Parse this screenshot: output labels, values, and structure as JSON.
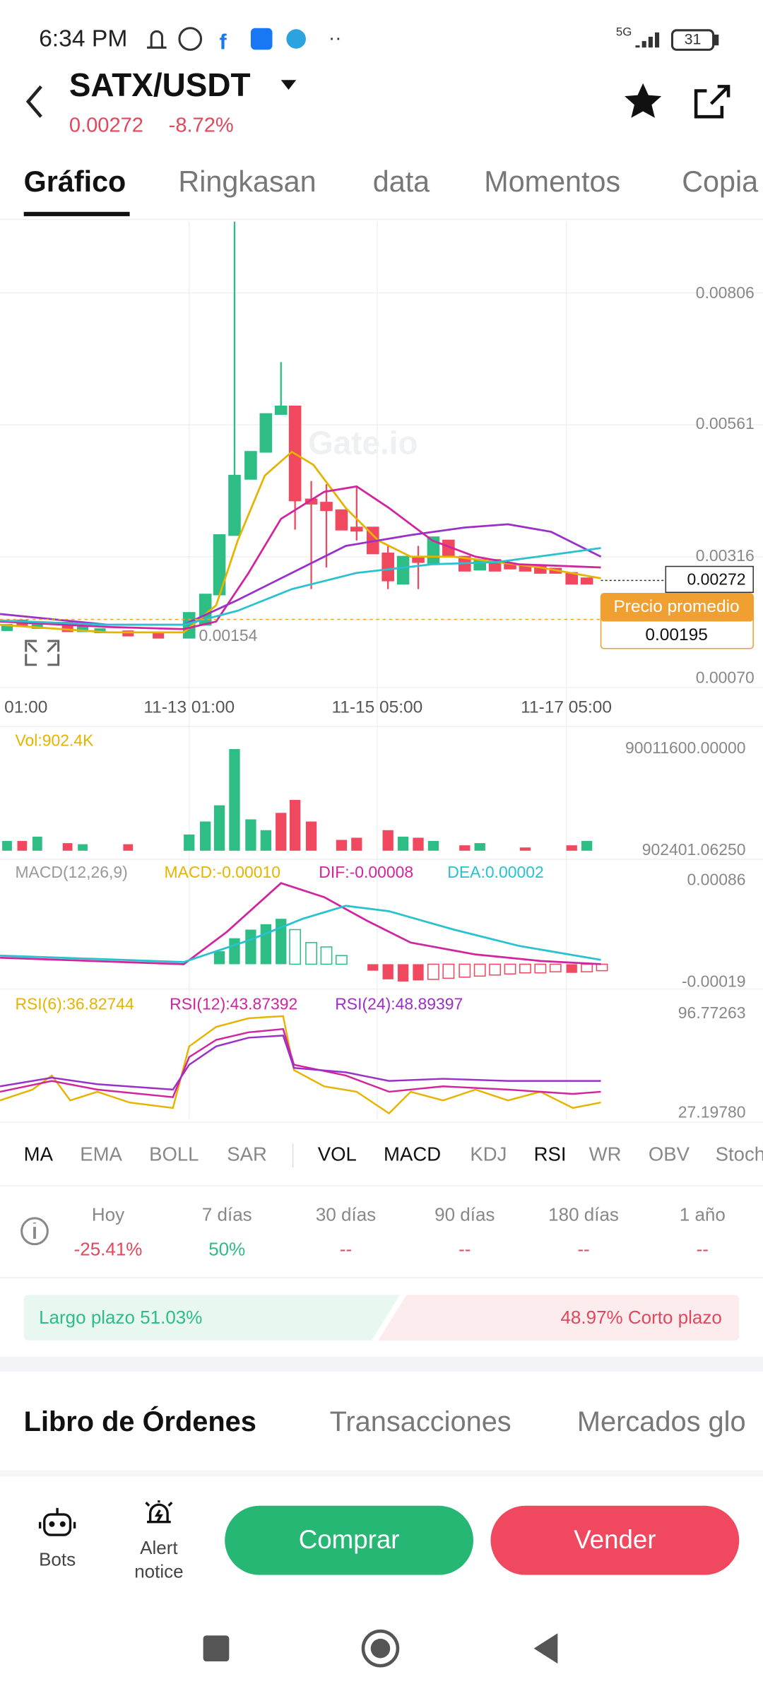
{
  "status_bar": {
    "time": "6:34 PM",
    "network": "5G",
    "battery": "31"
  },
  "header": {
    "pair": "SATX/USDT",
    "price": "0.00272",
    "change": "-8.72%"
  },
  "tabs": [
    "Gráfico",
    "Ringkasan",
    "data",
    "Momentos",
    "Copia"
  ],
  "price_chart": {
    "axis_labels": [
      "0.00806",
      "0.00561",
      "0.00316",
      "0.00070"
    ],
    "current_price": "0.00272",
    "average_label": "Precio promedio",
    "average_price": "0.00195",
    "low_label": "0.00154",
    "time_labels": [
      "01:00",
      "11-13 01:00",
      "11-15 05:00",
      "11-17 05:00"
    ],
    "watermark": "Gate.io"
  },
  "volume": {
    "label": "Vol:902.4K",
    "max": "90011600.00000",
    "min": "902401.06250"
  },
  "macd": {
    "name": "MACD(12,26,9)",
    "macd": "MACD:-0.00010",
    "dif": "DIF:-0.00008",
    "dea": "DEA:0.00002",
    "max": "0.00086",
    "min": "-0.00019"
  },
  "rsi": {
    "rsi6": "RSI(6):36.82744",
    "rsi12": "RSI(12):43.87392",
    "rsi24": "RSI(24):48.89397",
    "max": "96.77263",
    "min": "27.19780"
  },
  "indicators": [
    "MA",
    "EMA",
    "BOLL",
    "SAR",
    "VOL",
    "MACD",
    "KDJ",
    "RSI",
    "WR",
    "OBV",
    "Stoch"
  ],
  "performance": [
    {
      "period": "Hoy",
      "value": "-25.41%"
    },
    {
      "period": "7 días",
      "value": "50%"
    },
    {
      "period": "30 días",
      "value": "--"
    },
    {
      "period": "90 días",
      "value": "--"
    },
    {
      "period": "180 días",
      "value": "--"
    },
    {
      "period": "1 año",
      "value": "--"
    }
  ],
  "sentiment": {
    "long": "Largo plazo 51.03%",
    "short": "48.97% Corto plazo"
  },
  "bottom_tabs": [
    "Libro de Órdenes",
    "Transacciones",
    "Mercados glo"
  ],
  "actions": {
    "bots": "Bots",
    "alert_line1": "Alert",
    "alert_line2": "notice",
    "buy": "Comprar",
    "sell": "Vender"
  }
}
